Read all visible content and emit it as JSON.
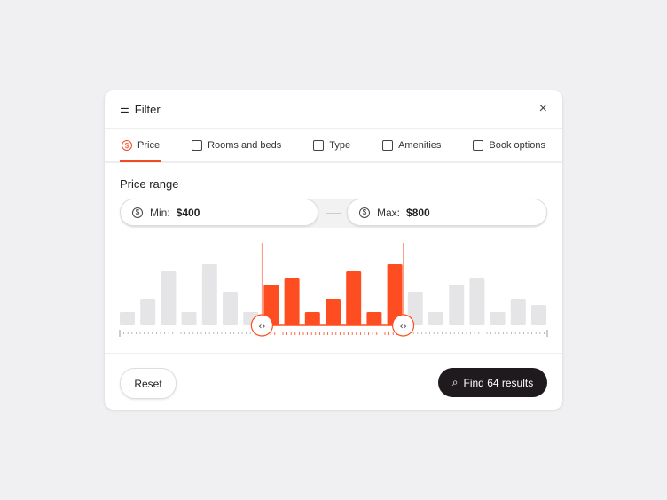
{
  "header": {
    "title": "Filter",
    "close": "×"
  },
  "tabs": [
    {
      "label": "Price",
      "active": true
    },
    {
      "label": "Rooms and beds"
    },
    {
      "label": "Type"
    },
    {
      "label": "Amenities"
    },
    {
      "label": "Book options"
    }
  ],
  "price": {
    "title": "Price range",
    "min_label": "Min:",
    "min_value": "$400",
    "max_label": "Max:",
    "max_value": "$800"
  },
  "histogram": {
    "values": [
      15,
      30,
      61,
      15,
      69,
      38,
      15,
      46,
      53,
      15,
      30,
      61,
      15,
      69,
      38,
      15,
      46,
      53,
      15,
      30,
      23
    ],
    "selected_from": 7,
    "selected_to": 13,
    "accent": "#ff4d22",
    "inactive": "#e5e5e7"
  },
  "footer": {
    "reset": "Reset",
    "find": "Find 64 results"
  }
}
